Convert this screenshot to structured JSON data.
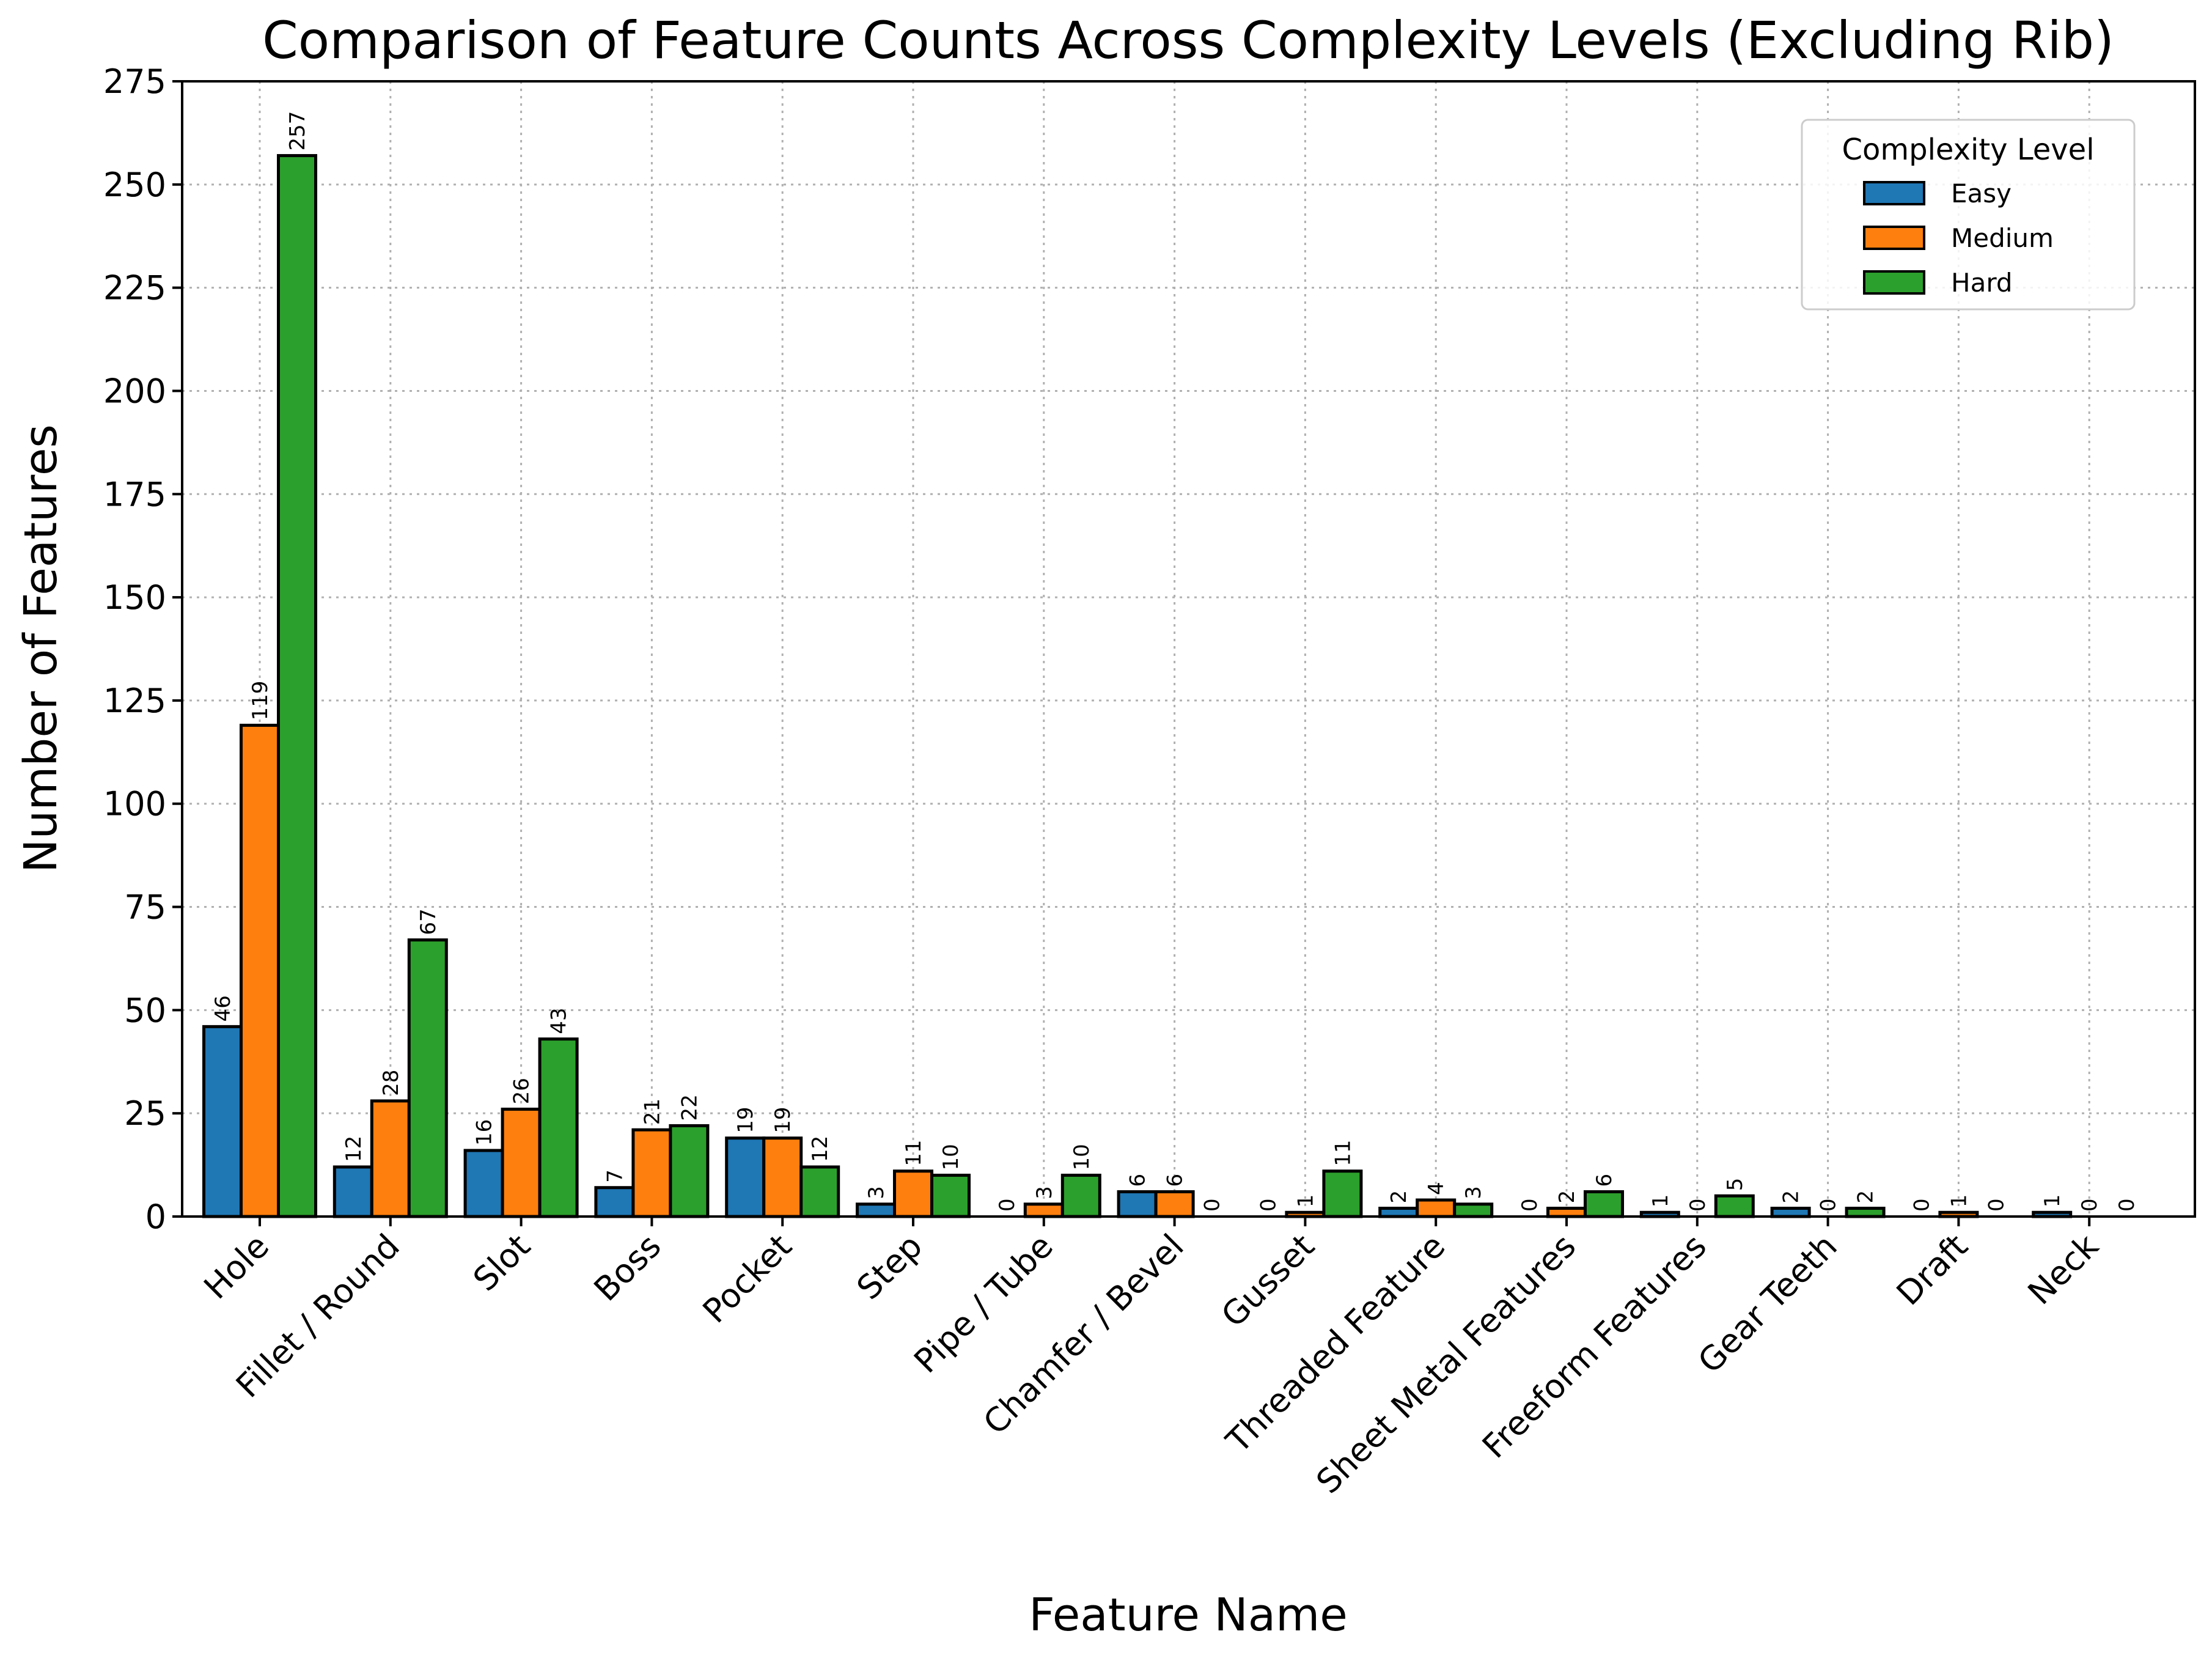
{
  "chart_data": {
    "type": "bar",
    "title": "Comparison of Feature Counts Across Complexity Levels (Excluding Rib)",
    "xlabel": "Feature Name",
    "ylabel": "Number of Features",
    "ylim": [
      0,
      275
    ],
    "yticks": [
      0,
      25,
      50,
      75,
      100,
      125,
      150,
      175,
      200,
      225,
      250,
      275
    ],
    "grid": true,
    "legend": {
      "title": "Complexity Level",
      "placement": "top-right"
    },
    "categories": [
      "Hole",
      "Fillet / Round",
      "Slot",
      "Boss",
      "Pocket",
      "Step",
      "Pipe / Tube",
      "Chamfer / Bevel",
      "Gusset",
      "Threaded Feature",
      "Sheet Metal Features",
      "Freeform Features",
      "Gear Teeth",
      "Draft",
      "Neck"
    ],
    "series": [
      {
        "name": "Easy",
        "color": "#1f77b4",
        "values": [
          46,
          12,
          16,
          7,
          19,
          3,
          0,
          6,
          0,
          2,
          0,
          1,
          2,
          0,
          1
        ]
      },
      {
        "name": "Medium",
        "color": "#ff7f0e",
        "values": [
          119,
          28,
          26,
          21,
          19,
          11,
          3,
          6,
          1,
          4,
          2,
          0,
          0,
          1,
          0
        ]
      },
      {
        "name": "Hard",
        "color": "#2ca02c",
        "values": [
          257,
          67,
          43,
          22,
          12,
          10,
          10,
          0,
          11,
          3,
          6,
          5,
          2,
          0,
          0
        ]
      }
    ]
  }
}
